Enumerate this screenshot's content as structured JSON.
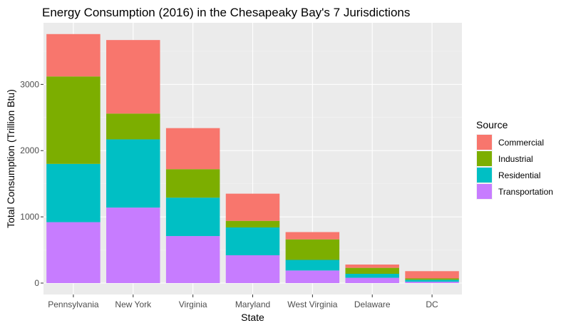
{
  "chart_data": {
    "type": "bar",
    "stacked": true,
    "title": "Energy Consumption (2016) in the Chesapeaky Bay's 7 Jurisdictions",
    "xlabel": "State",
    "ylabel": "Total Consumption (Trillion Btu)",
    "categories": [
      "Pennsylvania",
      "New York",
      "Virginia",
      "Maryland",
      "West Virginia",
      "Delaware",
      "DC"
    ],
    "ylim": [
      0,
      3930
    ],
    "yticks": [
      0,
      1000,
      2000,
      3000
    ],
    "grid": true,
    "legend": {
      "title": "Source",
      "position": "right"
    },
    "series": [
      {
        "name": "Transportation",
        "color": "#C77CFF",
        "values": [
          920,
          1140,
          710,
          420,
          190,
          80,
          20
        ]
      },
      {
        "name": "Residential",
        "color": "#00BFC4",
        "values": [
          880,
          1030,
          580,
          420,
          160,
          60,
          30
        ]
      },
      {
        "name": "Industrial",
        "color": "#7CAE00",
        "values": [
          1320,
          390,
          430,
          100,
          310,
          90,
          20
        ]
      },
      {
        "name": "Commercial",
        "color": "#F8766D",
        "values": [
          640,
          1110,
          620,
          410,
          110,
          50,
          110
        ]
      }
    ],
    "legend_order": [
      "Commercial",
      "Industrial",
      "Residential",
      "Transportation"
    ]
  }
}
